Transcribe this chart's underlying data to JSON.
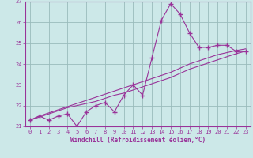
{
  "xlabel": "Windchill (Refroidissement éolien,°C)",
  "bg_color": "#cce8e8",
  "line_color": "#993399",
  "grid_color": "#99bbbb",
  "x_data": [
    0,
    1,
    2,
    3,
    4,
    5,
    6,
    7,
    8,
    9,
    10,
    11,
    12,
    13,
    14,
    15,
    16,
    17,
    18,
    19,
    20,
    21,
    22,
    23
  ],
  "y_main": [
    21.3,
    21.5,
    21.3,
    21.5,
    21.6,
    21.0,
    21.7,
    22.0,
    22.15,
    21.7,
    22.5,
    23.0,
    22.5,
    24.3,
    26.1,
    26.9,
    26.4,
    25.5,
    24.8,
    24.8,
    24.9,
    24.9,
    24.6,
    24.6
  ],
  "y_line1": [
    21.3,
    21.45,
    21.6,
    21.75,
    21.9,
    22.0,
    22.1,
    22.2,
    22.35,
    22.5,
    22.6,
    22.75,
    22.9,
    23.05,
    23.2,
    23.35,
    23.55,
    23.75,
    23.9,
    24.05,
    24.2,
    24.35,
    24.5,
    24.62
  ],
  "y_line2": [
    21.3,
    21.5,
    21.65,
    21.8,
    21.95,
    22.1,
    22.25,
    22.4,
    22.55,
    22.7,
    22.85,
    23.0,
    23.15,
    23.3,
    23.45,
    23.6,
    23.8,
    24.0,
    24.15,
    24.3,
    24.45,
    24.55,
    24.65,
    24.73
  ],
  "ylim": [
    21,
    27
  ],
  "xlim_min": -0.5,
  "xlim_max": 23.5,
  "yticks": [
    21,
    22,
    23,
    24,
    25,
    26,
    27
  ],
  "xticks": [
    0,
    1,
    2,
    3,
    4,
    5,
    6,
    7,
    8,
    9,
    10,
    11,
    12,
    13,
    14,
    15,
    16,
    17,
    18,
    19,
    20,
    21,
    22,
    23
  ]
}
